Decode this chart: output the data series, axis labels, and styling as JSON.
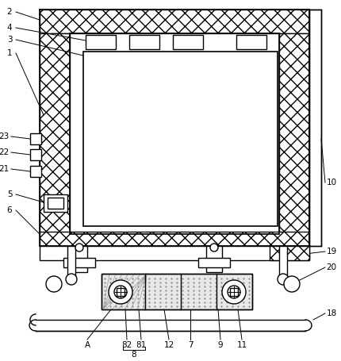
{
  "background_color": "#ffffff",
  "line_color": "#000000",
  "fig_width": 4.3,
  "fig_height": 4.55,
  "dpi": 100
}
